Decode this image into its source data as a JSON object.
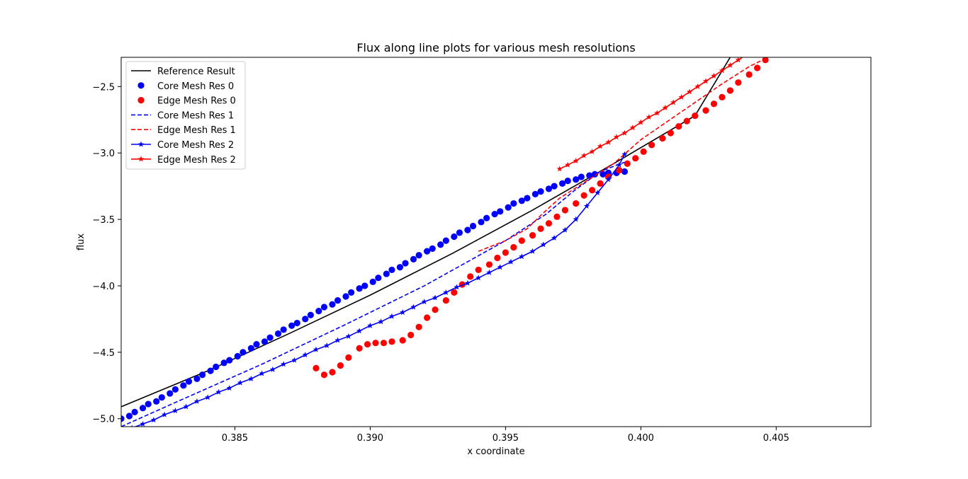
{
  "chart_data": {
    "type": "line",
    "title": "Flux along line plots for various mesh resolutions",
    "xlabel": "x coordinate",
    "ylabel": "flux",
    "xlim": [
      0.3808,
      0.4085
    ],
    "ylim": [
      -5.06,
      -2.28
    ],
    "xticks": [
      0.385,
      0.39,
      0.395,
      0.4,
      0.405
    ],
    "xtick_labels": [
      "0.385",
      "0.390",
      "0.395",
      "0.400",
      "0.405"
    ],
    "yticks": [
      -5.0,
      -4.5,
      -4.0,
      -3.5,
      -3.0,
      -2.5
    ],
    "ytick_labels": [
      "−5.0",
      "−4.5",
      "−4.0",
      "−3.5",
      "−3.0",
      "−2.5"
    ],
    "grid": false,
    "legend_position": "top-left",
    "series": [
      {
        "name": "Reference Result",
        "color": "#000000",
        "style": "solid",
        "marker": "none",
        "x": [
          0.3808,
          0.384,
          0.387,
          0.39,
          0.393,
          0.396,
          0.399,
          0.402,
          0.4033
        ],
        "y": [
          -4.91,
          -4.64,
          -4.36,
          -4.07,
          -3.76,
          -3.43,
          -3.08,
          -2.72,
          -2.28
        ]
      },
      {
        "name": "Core Mesh Res 0",
        "color": "#0000ff",
        "style": "none",
        "marker": "circle",
        "x": [
          0.3808,
          0.3811,
          0.3813,
          0.3816,
          0.3818,
          0.3821,
          0.3823,
          0.3826,
          0.3828,
          0.3831,
          0.3833,
          0.3836,
          0.3838,
          0.3841,
          0.3843,
          0.3846,
          0.3848,
          0.3851,
          0.3853,
          0.3856,
          0.3858,
          0.3861,
          0.3863,
          0.3866,
          0.3868,
          0.3871,
          0.3873,
          0.3876,
          0.3878,
          0.3881,
          0.3883,
          0.3886,
          0.3888,
          0.3891,
          0.3893,
          0.3896,
          0.3898,
          0.3901,
          0.3903,
          0.3906,
          0.3908,
          0.3911,
          0.3913,
          0.3916,
          0.3918,
          0.3921,
          0.3923,
          0.3926,
          0.3928,
          0.3931,
          0.3933,
          0.3936,
          0.3938,
          0.3941,
          0.3943,
          0.3946,
          0.3948,
          0.3951,
          0.3953,
          0.3956,
          0.3958,
          0.3961,
          0.3963,
          0.3966,
          0.3968,
          0.3971,
          0.3973,
          0.3976,
          0.3978,
          0.3981,
          0.3983,
          0.3986,
          0.3988,
          0.3991,
          0.3994
        ],
        "y": [
          -5.0,
          -4.98,
          -4.95,
          -4.92,
          -4.89,
          -4.87,
          -4.84,
          -4.81,
          -4.78,
          -4.75,
          -4.72,
          -4.7,
          -4.67,
          -4.64,
          -4.61,
          -4.58,
          -4.56,
          -4.53,
          -4.5,
          -4.47,
          -4.44,
          -4.42,
          -4.39,
          -4.36,
          -4.33,
          -4.3,
          -4.28,
          -4.25,
          -4.22,
          -4.19,
          -4.16,
          -4.14,
          -4.11,
          -4.08,
          -4.05,
          -4.02,
          -4.0,
          -3.97,
          -3.94,
          -3.91,
          -3.88,
          -3.86,
          -3.83,
          -3.8,
          -3.77,
          -3.74,
          -3.72,
          -3.69,
          -3.66,
          -3.63,
          -3.6,
          -3.58,
          -3.55,
          -3.52,
          -3.49,
          -3.46,
          -3.44,
          -3.41,
          -3.38,
          -3.36,
          -3.34,
          -3.31,
          -3.29,
          -3.27,
          -3.25,
          -3.23,
          -3.21,
          -3.2,
          -3.18,
          -3.17,
          -3.16,
          -3.16,
          -3.15,
          -3.15,
          -3.14
        ]
      },
      {
        "name": "Edge Mesh Res 0",
        "color": "#ff0000",
        "style": "none",
        "marker": "circle",
        "x": [
          0.388,
          0.3883,
          0.3886,
          0.3889,
          0.3892,
          0.3896,
          0.3899,
          0.3902,
          0.3905,
          0.3908,
          0.3912,
          0.3915,
          0.3918,
          0.3921,
          0.3924,
          0.3928,
          0.3931,
          0.3934,
          0.3937,
          0.394,
          0.3944,
          0.3947,
          0.395,
          0.3953,
          0.3956,
          0.396,
          0.3963,
          0.3966,
          0.3969,
          0.3972,
          0.3976,
          0.3979,
          0.3982,
          0.3985,
          0.3988,
          0.3992,
          0.3995,
          0.3998,
          0.4001,
          0.4004,
          0.4008,
          0.4011,
          0.4014,
          0.4017,
          0.402,
          0.4024,
          0.4027,
          0.403,
          0.4033,
          0.4036,
          0.404,
          0.4043,
          0.4046,
          0.4049,
          0.4052,
          0.4055
        ],
        "y": [
          -4.62,
          -4.67,
          -4.65,
          -4.6,
          -4.54,
          -4.47,
          -4.44,
          -4.43,
          -4.43,
          -4.42,
          -4.41,
          -4.37,
          -4.31,
          -4.24,
          -4.18,
          -4.11,
          -4.05,
          -3.99,
          -3.93,
          -3.88,
          -3.84,
          -3.79,
          -3.75,
          -3.71,
          -3.66,
          -3.62,
          -3.57,
          -3.53,
          -3.48,
          -3.43,
          -3.38,
          -3.32,
          -3.28,
          -3.23,
          -3.18,
          -3.13,
          -3.08,
          -3.04,
          -2.99,
          -2.94,
          -2.89,
          -2.85,
          -2.8,
          -2.76,
          -2.72,
          -2.68,
          -2.63,
          -2.58,
          -2.53,
          -2.47,
          -2.41,
          -2.36,
          -2.3,
          -2.25,
          -2.22,
          -2.2
        ]
      },
      {
        "name": "Core Mesh Res 1",
        "color": "#0000ff",
        "style": "dashed",
        "marker": "none",
        "x": [
          0.3808,
          0.383,
          0.386,
          0.389,
          0.392,
          0.395,
          0.3965,
          0.3975,
          0.3985,
          0.399,
          0.3994
        ],
        "y": [
          -5.06,
          -4.86,
          -4.59,
          -4.3,
          -4.0,
          -3.66,
          -3.46,
          -3.29,
          -3.14,
          -3.1,
          -3.07
        ]
      },
      {
        "name": "Edge Mesh Res 1",
        "color": "#ff0000",
        "style": "dashed",
        "marker": "none",
        "x": [
          0.394,
          0.395,
          0.3958,
          0.3963,
          0.397,
          0.398,
          0.399,
          0.4,
          0.401,
          0.402,
          0.403,
          0.404,
          0.4055
        ],
        "y": [
          -3.74,
          -3.66,
          -3.57,
          -3.47,
          -3.34,
          -3.21,
          -3.08,
          -2.9,
          -2.76,
          -2.62,
          -2.48,
          -2.35,
          -2.2
        ]
      },
      {
        "name": "Core Mesh Res 2",
        "color": "#0000ff",
        "style": "solid",
        "marker": "star",
        "x": [
          0.3808,
          0.3812,
          0.3816,
          0.382,
          0.3824,
          0.3828,
          0.3832,
          0.3836,
          0.384,
          0.3844,
          0.3848,
          0.3852,
          0.3856,
          0.386,
          0.3864,
          0.3868,
          0.3872,
          0.3876,
          0.388,
          0.3884,
          0.3888,
          0.3892,
          0.3896,
          0.39,
          0.3904,
          0.3908,
          0.3912,
          0.3916,
          0.392,
          0.3924,
          0.3928,
          0.3932,
          0.3936,
          0.394,
          0.3944,
          0.3948,
          0.3952,
          0.3956,
          0.396,
          0.3964,
          0.3968,
          0.3972,
          0.3976,
          0.398,
          0.3984,
          0.3988,
          0.3992,
          0.3994
        ],
        "y": [
          -5.1,
          -5.07,
          -5.04,
          -5.01,
          -4.97,
          -4.94,
          -4.91,
          -4.87,
          -4.84,
          -4.8,
          -4.77,
          -4.73,
          -4.7,
          -4.66,
          -4.63,
          -4.59,
          -4.56,
          -4.52,
          -4.48,
          -4.45,
          -4.41,
          -4.38,
          -4.34,
          -4.3,
          -4.27,
          -4.23,
          -4.2,
          -4.16,
          -4.12,
          -4.09,
          -4.05,
          -4.01,
          -3.98,
          -3.94,
          -3.9,
          -3.86,
          -3.82,
          -3.78,
          -3.74,
          -3.69,
          -3.64,
          -3.58,
          -3.5,
          -3.4,
          -3.3,
          -3.2,
          -3.09,
          -3.01
        ]
      },
      {
        "name": "Edge Mesh Res 2",
        "color": "#ff0000",
        "style": "solid",
        "marker": "star",
        "x": [
          0.397,
          0.3973,
          0.3976,
          0.3979,
          0.3982,
          0.3985,
          0.3988,
          0.3991,
          0.3994,
          0.3997,
          0.4,
          0.4003,
          0.4006,
          0.4009,
          0.4012,
          0.4015,
          0.4018,
          0.4021,
          0.4024,
          0.4027,
          0.403,
          0.4033,
          0.4036,
          0.4039,
          0.4042,
          0.4045
        ],
        "y": [
          -3.12,
          -3.09,
          -3.06,
          -3.02,
          -2.99,
          -2.95,
          -2.92,
          -2.88,
          -2.85,
          -2.81,
          -2.77,
          -2.73,
          -2.7,
          -2.66,
          -2.62,
          -2.58,
          -2.54,
          -2.5,
          -2.46,
          -2.42,
          -2.38,
          -2.34,
          -2.3,
          -2.26,
          -2.22,
          -2.18
        ]
      }
    ]
  }
}
